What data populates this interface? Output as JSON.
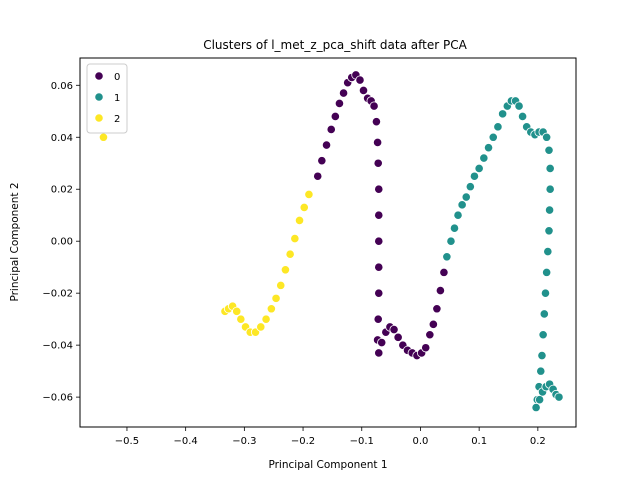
{
  "chart_data": {
    "type": "scatter",
    "title": "Clusters of l_met_z_pca_shift data after PCA",
    "xlabel": "Principal Component 1",
    "ylabel": "Principal Component 2",
    "xlim": [
      -0.58,
      0.265
    ],
    "ylim": [
      -0.0715,
      0.0705
    ],
    "xticks": [
      -0.5,
      -0.4,
      -0.3,
      -0.2,
      -0.1,
      0.0,
      0.1,
      0.2
    ],
    "xtick_labels": [
      "−0.5",
      "−0.4",
      "−0.3",
      "−0.2",
      "−0.1",
      "0.0",
      "0.1",
      "0.2"
    ],
    "yticks": [
      -0.06,
      -0.04,
      -0.02,
      0.0,
      0.02,
      0.04,
      0.06
    ],
    "ytick_labels": [
      "−0.06",
      "−0.04",
      "−0.02",
      "0.00",
      "0.02",
      "0.04",
      "0.06"
    ],
    "grid": false,
    "legend": {
      "placement": "top-left",
      "entries": [
        {
          "label": "0",
          "color": "#440154"
        },
        {
          "label": "1",
          "color": "#21918c"
        },
        {
          "label": "2",
          "color": "#fde725"
        }
      ]
    },
    "series": [
      {
        "name": "0",
        "color": "#440154",
        "points": [
          [
            -0.175,
            0.025
          ],
          [
            -0.168,
            0.031
          ],
          [
            -0.16,
            0.037
          ],
          [
            -0.152,
            0.043
          ],
          [
            -0.145,
            0.048
          ],
          [
            -0.138,
            0.053
          ],
          [
            -0.131,
            0.057
          ],
          [
            -0.124,
            0.061
          ],
          [
            -0.117,
            0.063
          ],
          [
            -0.11,
            0.064
          ],
          [
            -0.103,
            0.062
          ],
          [
            -0.097,
            0.058
          ],
          [
            -0.09,
            0.055
          ],
          [
            -0.084,
            0.054
          ],
          [
            -0.079,
            0.052
          ],
          [
            -0.075,
            0.046
          ],
          [
            -0.073,
            0.038
          ],
          [
            -0.072,
            0.03
          ],
          [
            -0.071,
            0.02
          ],
          [
            -0.071,
            0.01
          ],
          [
            -0.071,
            0.0
          ],
          [
            -0.071,
            -0.01
          ],
          [
            -0.071,
            -0.02
          ],
          [
            -0.072,
            -0.03
          ],
          [
            -0.073,
            -0.038
          ],
          [
            -0.071,
            -0.043
          ],
          [
            -0.066,
            -0.039
          ],
          [
            -0.059,
            -0.035
          ],
          [
            -0.052,
            -0.033
          ],
          [
            -0.045,
            -0.034
          ],
          [
            -0.038,
            -0.037
          ],
          [
            -0.03,
            -0.04
          ],
          [
            -0.022,
            -0.042
          ],
          [
            -0.014,
            -0.043
          ],
          [
            -0.006,
            -0.044
          ],
          [
            0.002,
            -0.043
          ],
          [
            0.009,
            -0.041
          ],
          [
            0.016,
            -0.036
          ],
          [
            0.022,
            -0.032
          ],
          [
            0.028,
            -0.026
          ],
          [
            0.034,
            -0.019
          ],
          [
            0.04,
            -0.012
          ]
        ]
      },
      {
        "name": "1",
        "color": "#21918c",
        "points": [
          [
            0.045,
            -0.006
          ],
          [
            0.052,
            0.0
          ],
          [
            0.058,
            0.005
          ],
          [
            0.064,
            0.01
          ],
          [
            0.071,
            0.014
          ],
          [
            0.078,
            0.017
          ],
          [
            0.085,
            0.021
          ],
          [
            0.092,
            0.025
          ],
          [
            0.1,
            0.028
          ],
          [
            0.108,
            0.032
          ],
          [
            0.116,
            0.036
          ],
          [
            0.124,
            0.04
          ],
          [
            0.132,
            0.044
          ],
          [
            0.14,
            0.049
          ],
          [
            0.148,
            0.052
          ],
          [
            0.155,
            0.054
          ],
          [
            0.162,
            0.054
          ],
          [
            0.168,
            0.052
          ],
          [
            0.174,
            0.048
          ],
          [
            0.181,
            0.044
          ],
          [
            0.188,
            0.042
          ],
          [
            0.195,
            0.041
          ],
          [
            0.202,
            0.042
          ],
          [
            0.209,
            0.042
          ],
          [
            0.215,
            0.04
          ],
          [
            0.219,
            0.035
          ],
          [
            0.221,
            0.028
          ],
          [
            0.221,
            0.02
          ],
          [
            0.22,
            0.012
          ],
          [
            0.219,
            0.004
          ],
          [
            0.217,
            -0.004
          ],
          [
            0.215,
            -0.012
          ],
          [
            0.213,
            -0.02
          ],
          [
            0.211,
            -0.028
          ],
          [
            0.209,
            -0.036
          ],
          [
            0.207,
            -0.044
          ],
          [
            0.205,
            -0.05
          ],
          [
            0.202,
            -0.056
          ],
          [
            0.199,
            -0.061
          ],
          [
            0.197,
            -0.064
          ],
          [
            0.203,
            -0.061
          ],
          [
            0.208,
            -0.058
          ],
          [
            0.214,
            -0.056
          ],
          [
            0.22,
            -0.055
          ],
          [
            0.226,
            -0.057
          ],
          [
            0.231,
            -0.059
          ],
          [
            0.236,
            -0.06
          ]
        ]
      },
      {
        "name": "2",
        "color": "#fde725",
        "points": [
          [
            -0.54,
            0.04
          ],
          [
            -0.333,
            -0.027
          ],
          [
            -0.327,
            -0.026
          ],
          [
            -0.32,
            -0.025
          ],
          [
            -0.313,
            -0.027
          ],
          [
            -0.306,
            -0.03
          ],
          [
            -0.298,
            -0.033
          ],
          [
            -0.29,
            -0.035
          ],
          [
            -0.281,
            -0.035
          ],
          [
            -0.272,
            -0.033
          ],
          [
            -0.263,
            -0.03
          ],
          [
            -0.254,
            -0.026
          ],
          [
            -0.246,
            -0.022
          ],
          [
            -0.238,
            -0.017
          ],
          [
            -0.23,
            -0.011
          ],
          [
            -0.222,
            -0.005
          ],
          [
            -0.214,
            0.001
          ],
          [
            -0.206,
            0.008
          ],
          [
            -0.198,
            0.013
          ],
          [
            -0.19,
            0.018
          ]
        ]
      }
    ]
  }
}
